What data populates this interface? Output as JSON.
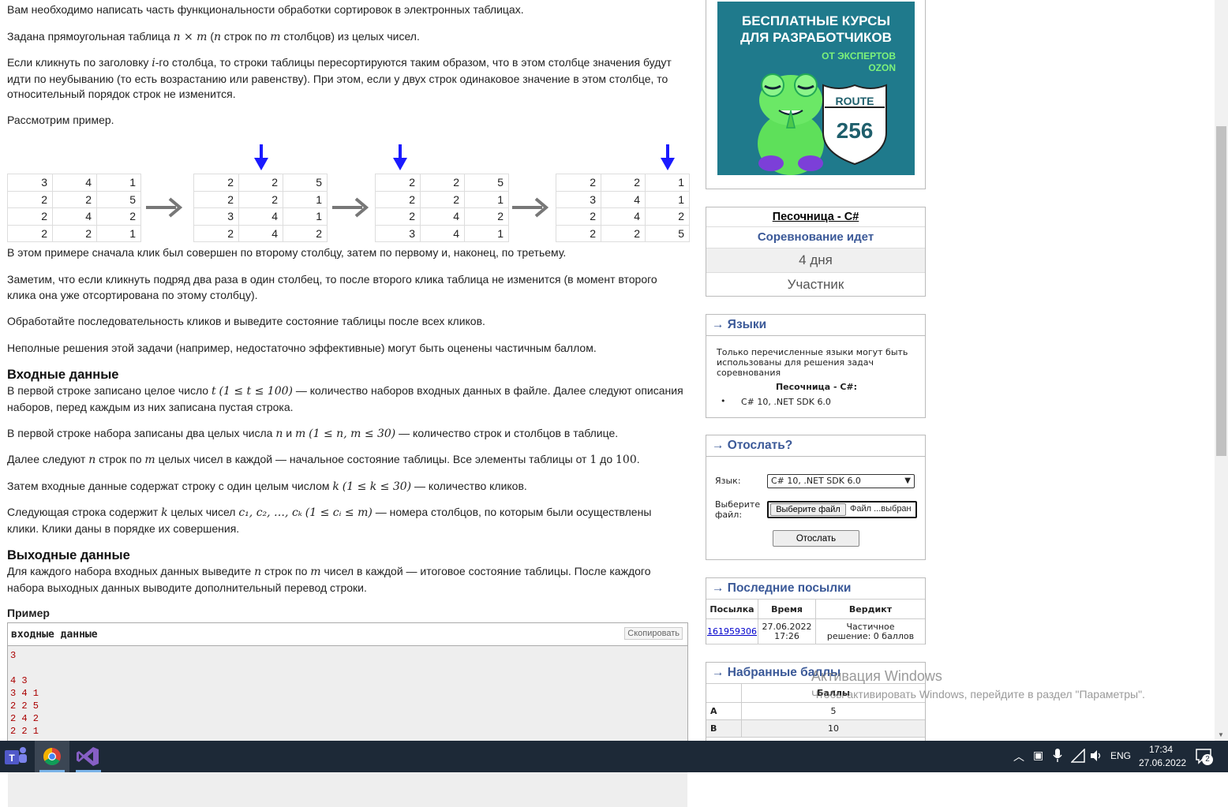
{
  "statement": {
    "p1": "Вам необходимо написать часть функциональности обработки сортировок в электронных таблицах.",
    "p2_a": "Задана прямоугольная таблица ",
    "p2_math1": "n × m",
    "p2_b": " (",
    "p2_math2": "n",
    "p2_c": " строк по ",
    "p2_math3": "m",
    "p2_d": " столбцов) из целых чисел.",
    "p3_a": "Если кликнуть по заголовку ",
    "p3_math": "i",
    "p3_b": "-го столбца, то строки таблицы пересортируются таким образом, что в этом столбце значения будут идти по неубыванию (то есть возрастанию или равенству). При этом, если у двух строк одинаковое значение в этом столбце, то относительный порядок строк не изменится.",
    "p4": "Рассмотрим пример.",
    "p5": "В этом примере сначала клик был совершен по второму столбцу, затем по первому и, наконец, по третьему.",
    "p6": "Заметим, что если кликнуть подряд два раза в один столбец, то после второго клика таблица не изменится (в момент второго клика она уже отсортирована по этому столбцу).",
    "p7": "Обработайте последовательность кликов и выведите состояние таблицы после всех кликов.",
    "p8": "Неполные решения этой задачи (например, недостаточно эффективные) могут быть оценены частичным баллом.",
    "input_title": "Входные данные",
    "in1_a": "В первой строке записано целое число ",
    "in1_math1": "t",
    "in1_math2": "(1 ≤ t ≤ 100)",
    "in1_b": " — количество наборов входных данных в файле. Далее следуют описания наборов, перед каждым из них записана пустая строка.",
    "in2_a": "В первой строке набора записаны два целых числа ",
    "in2_math1": "n",
    "in2_b": " и ",
    "in2_math2": "m",
    "in2_math3": "(1 ≤ n, m ≤ 30)",
    "in2_c": " — количество строк и столбцов в таблице.",
    "in3_a": "Далее следуют ",
    "in3_math1": "n",
    "in3_b": " строк по ",
    "in3_math2": "m",
    "in3_c": " целых чисел в каждой — начальное состояние таблицы. Все элементы таблицы от ",
    "in3_math3": "1",
    "in3_d": " до ",
    "in3_math4": "100",
    "in3_e": ".",
    "in4_a": "Затем входные данные содержат строку с один целым числом ",
    "in4_math1": "k",
    "in4_math2": "(1 ≤ k ≤ 30)",
    "in4_b": " — количество кликов.",
    "in5_a": "Следующая строка содержит ",
    "in5_math1": "k",
    "in5_b": " целых чисел ",
    "in5_math2": "c₁, c₂, …, cₖ",
    "in5_math3": "(1 ≤ cᵢ ≤ m)",
    "in5_c": " — номера столбцов, по которым были осуществлены клики. Клики даны в порядке их совершения.",
    "output_title": "Выходные данные",
    "out1_a": "Для каждого набора входных данных выведите ",
    "out1_math1": "n",
    "out1_b": " строк по ",
    "out1_math2": "m",
    "out1_c": " чисел в каждой — итоговое состояние таблицы. После каждого набора выходных данных выводите дополнительный перевод строки.",
    "example_title": "Пример",
    "sample_title": "входные данные",
    "copy_button": "Скопировать",
    "sample_lines": [
      "3",
      "",
      "4 3",
      "3 4 1",
      "2 2 5",
      "2 4 2",
      "2 2 1"
    ]
  },
  "example_tables": [
    [
      [
        "3",
        "4",
        "1"
      ],
      [
        "2",
        "2",
        "5"
      ],
      [
        "2",
        "4",
        "2"
      ],
      [
        "2",
        "2",
        "1"
      ]
    ],
    [
      [
        "2",
        "2",
        "5"
      ],
      [
        "2",
        "2",
        "1"
      ],
      [
        "3",
        "4",
        "1"
      ],
      [
        "2",
        "4",
        "2"
      ]
    ],
    [
      [
        "2",
        "2",
        "5"
      ],
      [
        "2",
        "2",
        "1"
      ],
      [
        "2",
        "4",
        "2"
      ],
      [
        "3",
        "4",
        "1"
      ]
    ],
    [
      [
        "2",
        "2",
        "1"
      ],
      [
        "3",
        "4",
        "1"
      ],
      [
        "2",
        "4",
        "2"
      ],
      [
        "2",
        "2",
        "5"
      ]
    ]
  ],
  "ad": {
    "line1": "БЕСПЛАТНЫЕ КУРСЫ",
    "line2": "ДЛЯ РАЗРАБОТЧИКОВ",
    "line3": "ОТ ЭКСПЕРТОВ",
    "line4": "OZON",
    "route": "ROUTE",
    "num": "256"
  },
  "contest": {
    "name": "Песочница - C#",
    "status": "Соревнование идет",
    "time_left": "4 дня",
    "role": "Участник"
  },
  "languages": {
    "title": "→ Языки",
    "note": "Только перечисленные языки могут быть использованы для решения задач соревнования",
    "group": "Песочница - C#:",
    "items": [
      "C# 10, .NET SDK 6.0"
    ]
  },
  "submit": {
    "title": "→ Отослать?",
    "lang_label": "Язык:",
    "lang_value": "C# 10, .NET SDK 6.0",
    "file_label_1": "Выберите",
    "file_label_2": "файл:",
    "file_button": "Выберите файл",
    "file_status": "Файл ...выбран",
    "send_button": "Отослать"
  },
  "last_submissions": {
    "title": "→ Последние посылки",
    "headers": [
      "Посылка",
      "Время",
      "Вердикт"
    ],
    "rows": [
      {
        "id": "161959306",
        "date": "27.06.2022",
        "time": "17:26",
        "verdict_1": "Частичное",
        "verdict_2": "решение: 0 баллов"
      }
    ]
  },
  "scores": {
    "title": "→ Набранные баллы",
    "header": "Баллы",
    "rows": [
      {
        "problem": "A",
        "score": "5"
      },
      {
        "problem": "B",
        "score": "10"
      }
    ]
  },
  "watermark": {
    "line1": "Активация Windows",
    "line2": "Чтобы активировать Windows, перейдите в раздел \"Параметры\"."
  },
  "taskbar": {
    "lang": "ENG",
    "time": "17:34",
    "date": "27.06.2022",
    "notifications": "2"
  },
  "colors": {
    "accent": "#3b5998",
    "arrow_blue": "#1a1aff",
    "arrow_gray": "#777777",
    "taskbar": "#1d2937",
    "ad_bg": "#1f7a8c"
  }
}
